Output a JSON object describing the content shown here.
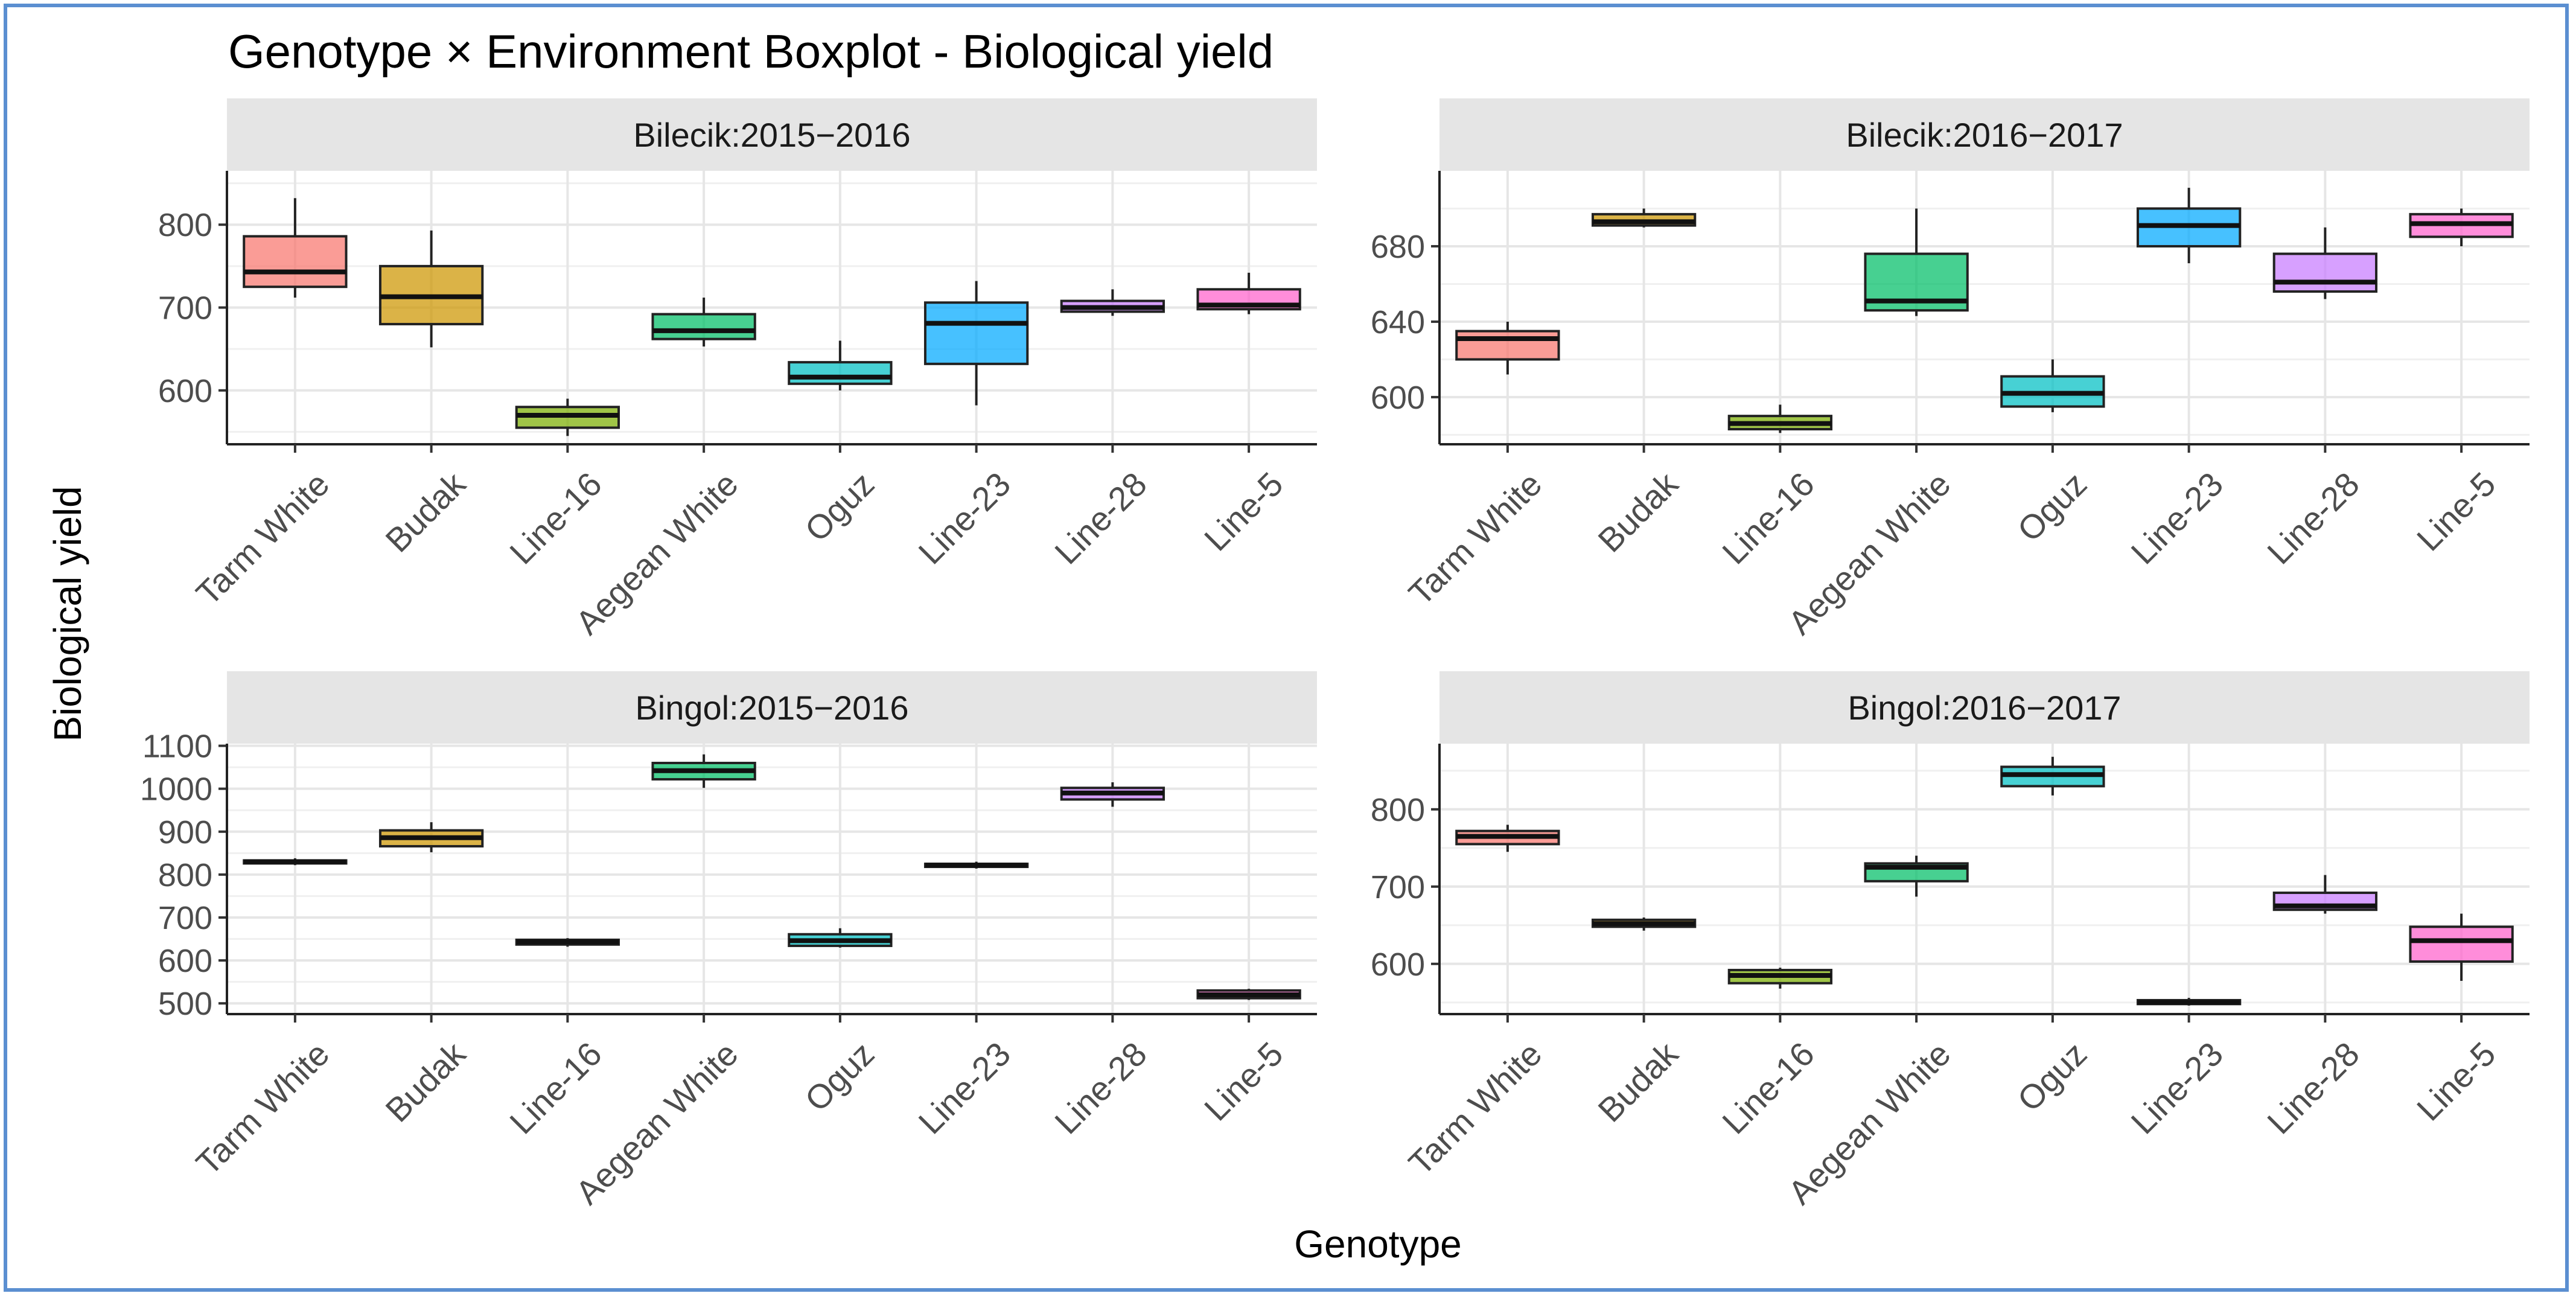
{
  "title": "Genotype × Environment Boxplot - Biological yield",
  "xlabel": "Genotype",
  "ylabel": "Biological yield",
  "chart_data": {
    "type": "boxplot",
    "title": "Genotype × Environment Boxplot - Biological yield",
    "xlabel": "Genotype",
    "ylabel": "Biological yield",
    "categories": [
      "Tarm White",
      "Budak",
      "Line-16",
      "Aegean White",
      "Oguz",
      "Line-23",
      "Line-28",
      "Line-5"
    ],
    "colors": [
      "#f8766d",
      "#cd9600",
      "#7cae00",
      "#00be67",
      "#00bfc4",
      "#00a9ff",
      "#c77cff",
      "#ff61cc"
    ],
    "grid": true,
    "facets": [
      {
        "name": "Bilecik:2015−2016",
        "ylim": [
          535,
          865
        ],
        "yticks": [
          600,
          700,
          800
        ],
        "boxes": [
          {
            "min": 712,
            "q1": 725,
            "median": 743,
            "q3": 786,
            "max": 832
          },
          {
            "min": 652,
            "q1": 680,
            "median": 713,
            "q3": 750,
            "max": 793
          },
          {
            "min": 545,
            "q1": 555,
            "median": 570,
            "q3": 580,
            "max": 590
          },
          {
            "min": 653,
            "q1": 662,
            "median": 672,
            "q3": 692,
            "max": 712
          },
          {
            "min": 600,
            "q1": 608,
            "median": 616,
            "q3": 634,
            "max": 660
          },
          {
            "min": 582,
            "q1": 632,
            "median": 681,
            "q3": 706,
            "max": 732
          },
          {
            "min": 690,
            "q1": 695,
            "median": 700,
            "q3": 708,
            "max": 722
          },
          {
            "min": 692,
            "q1": 698,
            "median": 703,
            "q3": 722,
            "max": 742
          }
        ]
      },
      {
        "name": "Bilecik:2016−2017",
        "ylim": [
          575,
          720
        ],
        "yticks": [
          600,
          640,
          680
        ],
        "boxes": [
          {
            "min": 612,
            "q1": 620,
            "median": 631,
            "q3": 635,
            "max": 640
          },
          {
            "min": 690,
            "q1": 691,
            "median": 693,
            "q3": 697,
            "max": 700
          },
          {
            "min": 581,
            "q1": 583,
            "median": 586,
            "q3": 590,
            "max": 596
          },
          {
            "min": 643,
            "q1": 646,
            "median": 651,
            "q3": 676,
            "max": 700
          },
          {
            "min": 592,
            "q1": 595,
            "median": 602,
            "q3": 611,
            "max": 620
          },
          {
            "min": 671,
            "q1": 680,
            "median": 691,
            "q3": 700,
            "max": 711
          },
          {
            "min": 652,
            "q1": 656,
            "median": 661,
            "q3": 676,
            "max": 690
          },
          {
            "min": 680,
            "q1": 685,
            "median": 692,
            "q3": 697,
            "max": 700
          }
        ]
      },
      {
        "name": "Bingol:2015−2016",
        "ylim": [
          475,
          1105
        ],
        "yticks": [
          500,
          600,
          700,
          800,
          900,
          1000,
          1100
        ],
        "boxes": [
          {
            "min": 822,
            "q1": 826,
            "median": 830,
            "q3": 833,
            "max": 838
          },
          {
            "min": 852,
            "q1": 866,
            "median": 886,
            "q3": 903,
            "max": 922
          },
          {
            "min": 632,
            "q1": 637,
            "median": 643,
            "q3": 648,
            "max": 652
          },
          {
            "min": 1002,
            "q1": 1022,
            "median": 1042,
            "q3": 1060,
            "max": 1080
          },
          {
            "min": 630,
            "q1": 634,
            "median": 646,
            "q3": 661,
            "max": 675
          },
          {
            "min": 814,
            "q1": 818,
            "median": 822,
            "q3": 825,
            "max": 830
          },
          {
            "min": 958,
            "q1": 975,
            "median": 990,
            "q3": 1002,
            "max": 1015
          },
          {
            "min": 508,
            "q1": 512,
            "median": 520,
            "q3": 530,
            "max": 534
          }
        ]
      },
      {
        "name": "Bingol:2016−2017",
        "ylim": [
          535,
          885
        ],
        "yticks": [
          600,
          700,
          800
        ],
        "boxes": [
          {
            "min": 745,
            "q1": 755,
            "median": 765,
            "q3": 772,
            "max": 780
          },
          {
            "min": 643,
            "q1": 648,
            "median": 652,
            "q3": 657,
            "max": 660
          },
          {
            "min": 568,
            "q1": 575,
            "median": 585,
            "q3": 592,
            "max": 595
          },
          {
            "min": 687,
            "q1": 707,
            "median": 725,
            "q3": 730,
            "max": 740
          },
          {
            "min": 818,
            "q1": 830,
            "median": 845,
            "q3": 855,
            "max": 868
          },
          {
            "min": 546,
            "q1": 548,
            "median": 550,
            "q3": 553,
            "max": 556
          },
          {
            "min": 665,
            "q1": 670,
            "median": 675,
            "q3": 692,
            "max": 715
          },
          {
            "min": 578,
            "q1": 603,
            "median": 630,
            "q3": 648,
            "max": 665
          }
        ]
      }
    ]
  }
}
